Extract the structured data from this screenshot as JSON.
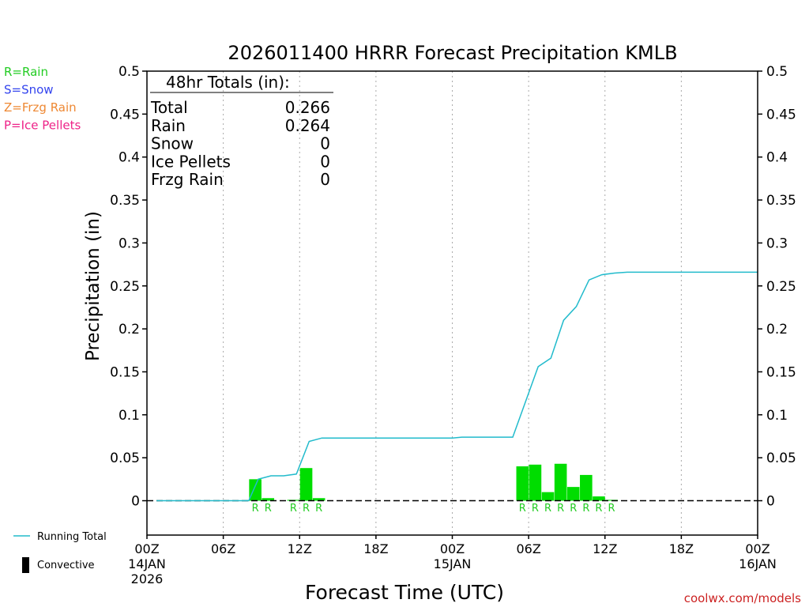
{
  "chart_data": {
    "type": "bar",
    "title": "2026011400 HRRR Forecast Precipitation KMLB",
    "xlabel": "Forecast Time (UTC)",
    "ylabel": "Precipitation (in)",
    "ylim": [
      -0.04,
      0.5
    ],
    "xlim_hours": [
      0,
      48
    ],
    "y_ticks": [
      0,
      0.05,
      0.1,
      0.15,
      0.2,
      0.25,
      0.3,
      0.35,
      0.4,
      0.45,
      0.5
    ],
    "y_tick_labels": [
      "0",
      "0.05",
      "0.1",
      "0.15",
      "0.2",
      "0.25",
      "0.3",
      "0.35",
      "0.4",
      "0.45",
      "0.5"
    ],
    "x_ticks": [
      {
        "hour": 0,
        "line1": "00Z",
        "line2": "14JAN",
        "line3": "2026"
      },
      {
        "hour": 6,
        "line1": "06Z",
        "line2": "",
        "line3": ""
      },
      {
        "hour": 12,
        "line1": "12Z",
        "line2": "",
        "line3": ""
      },
      {
        "hour": 18,
        "line1": "18Z",
        "line2": "",
        "line3": ""
      },
      {
        "hour": 24,
        "line1": "00Z",
        "line2": "15JAN",
        "line3": ""
      },
      {
        "hour": 30,
        "line1": "06Z",
        "line2": "",
        "line3": ""
      },
      {
        "hour": 36,
        "line1": "12Z",
        "line2": "",
        "line3": ""
      },
      {
        "hour": 42,
        "line1": "18Z",
        "line2": "",
        "line3": ""
      },
      {
        "hour": 48,
        "line1": "00Z",
        "line2": "16JAN",
        "line3": ""
      }
    ],
    "grid": "vertical-dotted",
    "ptype_legend": [
      {
        "label": "R=Rain",
        "color": "#22cc22"
      },
      {
        "label": "S=Snow",
        "color": "#3344ee"
      },
      {
        "label": "Z=Frzg Rain",
        "color": "#ee8833"
      },
      {
        "label": "P=Ice Pellets",
        "color": "#ee2288"
      }
    ],
    "totals": {
      "header": "48hr Totals (in):",
      "rows": [
        {
          "label": "Total",
          "value": "0.266"
        },
        {
          "label": "Rain",
          "value": "0.264"
        },
        {
          "label": "Snow",
          "value": "0"
        },
        {
          "label": "Ice Pellets",
          "value": "0"
        },
        {
          "label": "Frzg Rain",
          "value": "0"
        }
      ]
    },
    "hourly_bars": {
      "color": "#00dd00",
      "hours": [
        9,
        10,
        12,
        13,
        14,
        30,
        31,
        32,
        33,
        34,
        35,
        36,
        37
      ],
      "values": [
        0.025,
        0.003,
        0.001,
        0.038,
        0.003,
        0.04,
        0.042,
        0.01,
        0.043,
        0.016,
        0.03,
        0.005,
        0.001
      ],
      "ptype": [
        "R",
        "R",
        "R",
        "R",
        "R",
        "R",
        "R",
        "R",
        "R",
        "R",
        "R",
        "R",
        "R"
      ],
      "ptype_color": "#22cc22"
    },
    "running_total": {
      "name": "Running Total",
      "color": "#22bbcc",
      "x": [
        0.75,
        8,
        8.75,
        9.75,
        10.75,
        11.75,
        12.75,
        13.75,
        14.75,
        24,
        24.75,
        28,
        28.75,
        29.75,
        30.75,
        31.75,
        32.75,
        33.75,
        34.75,
        35.75,
        36.75,
        37.75,
        38.75,
        39.75,
        48
      ],
      "y": [
        0,
        0,
        0.025,
        0.029,
        0.029,
        0.031,
        0.069,
        0.073,
        0.073,
        0.073,
        0.074,
        0.074,
        0.074,
        0.115,
        0.156,
        0.166,
        0.21,
        0.226,
        0.257,
        0.263,
        0.265,
        0.266,
        0.266,
        0.266,
        0.266
      ]
    },
    "legend": [
      {
        "label": "Running Total",
        "symbol": "line",
        "color": "#22bbcc"
      },
      {
        "label": "Convective",
        "symbol": "bar",
        "color": "#000000"
      }
    ],
    "credit": "coolwx.com/models"
  }
}
